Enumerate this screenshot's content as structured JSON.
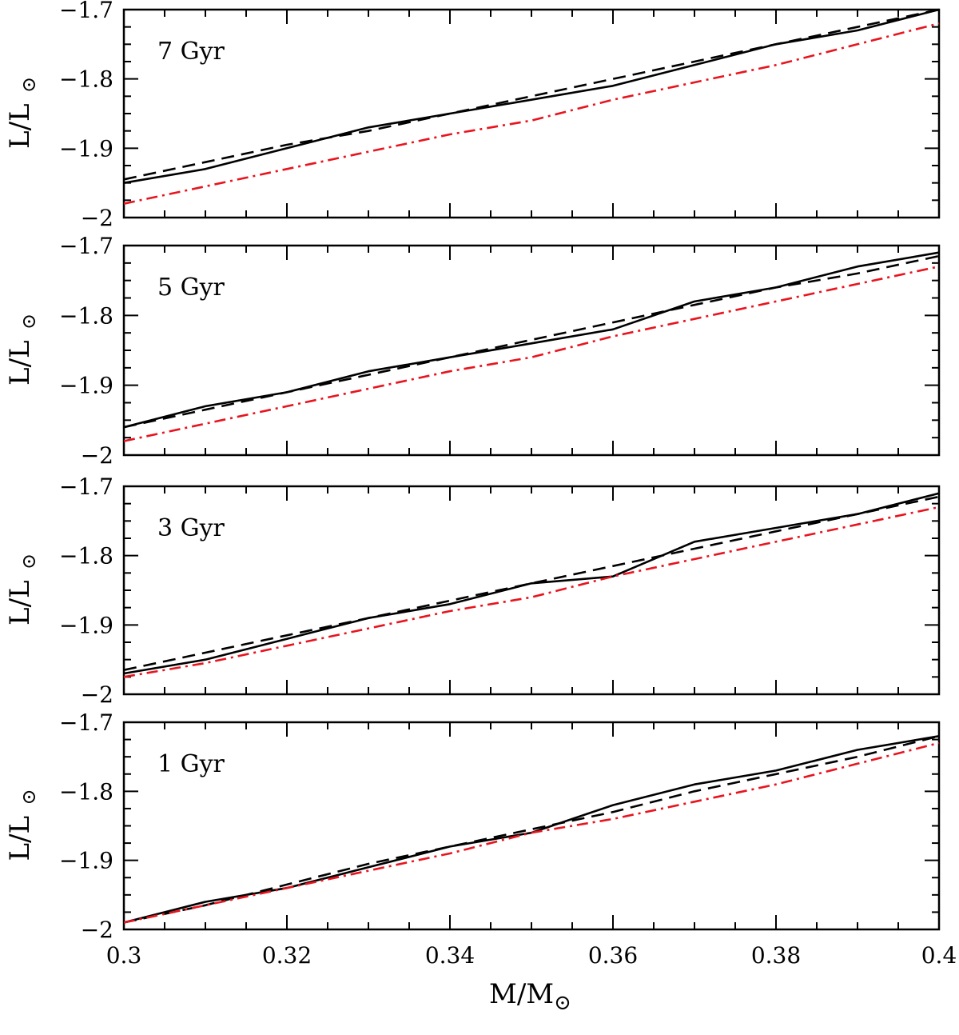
{
  "x_axis_label": "M/M",
  "y_axis_label": "L/L",
  "sun_symbol": "⊙",
  "chart_data": [
    {
      "type": "line",
      "panel_label": "7 Gyr",
      "xlim": [
        0.3,
        0.4
      ],
      "ylim": [
        -2,
        -1.7
      ],
      "x_ticks": [
        "0.3",
        "0.32",
        "0.34",
        "0.36",
        "0.38",
        "0.4"
      ],
      "y_ticks": [
        "-1.7",
        "-1.8",
        "-1.9",
        "-2"
      ],
      "x": [
        0.3,
        0.31,
        0.32,
        0.33,
        0.34,
        0.35,
        0.36,
        0.37,
        0.38,
        0.39,
        0.4
      ],
      "series": [
        {
          "style": "solid",
          "color": "#000000",
          "values": [
            -1.95,
            -1.93,
            -1.9,
            -1.87,
            -1.85,
            -1.83,
            -1.81,
            -1.78,
            -1.75,
            -1.73,
            -1.7
          ]
        },
        {
          "style": "dashed",
          "color": "#000000",
          "values": [
            -1.945,
            -1.92,
            -1.895,
            -1.875,
            -1.85,
            -1.825,
            -1.8,
            -1.775,
            -1.75,
            -1.725,
            -1.7
          ]
        },
        {
          "style": "dash-dot",
          "color": "#e8141e",
          "values": [
            -1.98,
            -1.955,
            -1.93,
            -1.905,
            -1.88,
            -1.86,
            -1.83,
            -1.805,
            -1.78,
            -1.75,
            -1.72
          ]
        }
      ]
    },
    {
      "type": "line",
      "panel_label": "5 Gyr",
      "xlim": [
        0.3,
        0.4
      ],
      "ylim": [
        -2,
        -1.7
      ],
      "x_ticks": [
        "0.3",
        "0.32",
        "0.34",
        "0.36",
        "0.38",
        "0.4"
      ],
      "y_ticks": [
        "-1.7",
        "-1.8",
        "-1.9",
        "-2"
      ],
      "x": [
        0.3,
        0.31,
        0.32,
        0.33,
        0.34,
        0.35,
        0.36,
        0.37,
        0.38,
        0.39,
        0.4
      ],
      "series": [
        {
          "style": "solid",
          "color": "#000000",
          "values": [
            -1.96,
            -1.93,
            -1.91,
            -1.88,
            -1.86,
            -1.84,
            -1.82,
            -1.78,
            -1.76,
            -1.73,
            -1.71
          ]
        },
        {
          "style": "dashed",
          "color": "#000000",
          "values": [
            -1.96,
            -1.935,
            -1.91,
            -1.885,
            -1.86,
            -1.835,
            -1.81,
            -1.785,
            -1.76,
            -1.74,
            -1.715
          ]
        },
        {
          "style": "dash-dot",
          "color": "#e8141e",
          "values": [
            -1.98,
            -1.955,
            -1.93,
            -1.905,
            -1.88,
            -1.86,
            -1.83,
            -1.805,
            -1.78,
            -1.755,
            -1.73
          ]
        }
      ]
    },
    {
      "type": "line",
      "panel_label": "3 Gyr",
      "xlim": [
        0.3,
        0.4
      ],
      "ylim": [
        -2,
        -1.7
      ],
      "x_ticks": [
        "0.3",
        "0.32",
        "0.34",
        "0.36",
        "0.38",
        "0.4"
      ],
      "y_ticks": [
        "-1.7",
        "-1.8",
        "-1.9",
        "-2"
      ],
      "x": [
        0.3,
        0.31,
        0.32,
        0.33,
        0.34,
        0.35,
        0.36,
        0.37,
        0.38,
        0.39,
        0.4
      ],
      "series": [
        {
          "style": "solid",
          "color": "#000000",
          "values": [
            -1.97,
            -1.95,
            -1.92,
            -1.89,
            -1.87,
            -1.84,
            -1.83,
            -1.78,
            -1.76,
            -1.74,
            -1.71
          ]
        },
        {
          "style": "dashed",
          "color": "#000000",
          "values": [
            -1.965,
            -1.94,
            -1.915,
            -1.89,
            -1.865,
            -1.84,
            -1.815,
            -1.79,
            -1.765,
            -1.74,
            -1.715
          ]
        },
        {
          "style": "dash-dot",
          "color": "#e8141e",
          "values": [
            -1.975,
            -1.955,
            -1.93,
            -1.905,
            -1.88,
            -1.86,
            -1.83,
            -1.805,
            -1.78,
            -1.755,
            -1.73
          ]
        }
      ]
    },
    {
      "type": "line",
      "panel_label": "1 Gyr",
      "xlim": [
        0.3,
        0.4
      ],
      "ylim": [
        -2,
        -1.7
      ],
      "x_ticks": [
        "0.3",
        "0.32",
        "0.34",
        "0.36",
        "0.38",
        "0.4"
      ],
      "y_ticks": [
        "-1.7",
        "-1.8",
        "-1.9",
        "-2"
      ],
      "x": [
        0.3,
        0.31,
        0.32,
        0.33,
        0.34,
        0.35,
        0.36,
        0.37,
        0.38,
        0.39,
        0.4
      ],
      "series": [
        {
          "style": "solid",
          "color": "#000000",
          "values": [
            -1.99,
            -1.96,
            -1.94,
            -1.91,
            -1.88,
            -1.86,
            -1.82,
            -1.79,
            -1.77,
            -1.74,
            -1.72
          ]
        },
        {
          "style": "dashed",
          "color": "#000000",
          "values": [
            -1.99,
            -1.965,
            -1.935,
            -1.905,
            -1.88,
            -1.855,
            -1.83,
            -1.8,
            -1.775,
            -1.75,
            -1.72
          ]
        },
        {
          "style": "dash-dot",
          "color": "#e8141e",
          "values": [
            -1.99,
            -1.965,
            -1.94,
            -1.915,
            -1.89,
            -1.86,
            -1.84,
            -1.815,
            -1.79,
            -1.76,
            -1.73
          ]
        }
      ]
    }
  ]
}
